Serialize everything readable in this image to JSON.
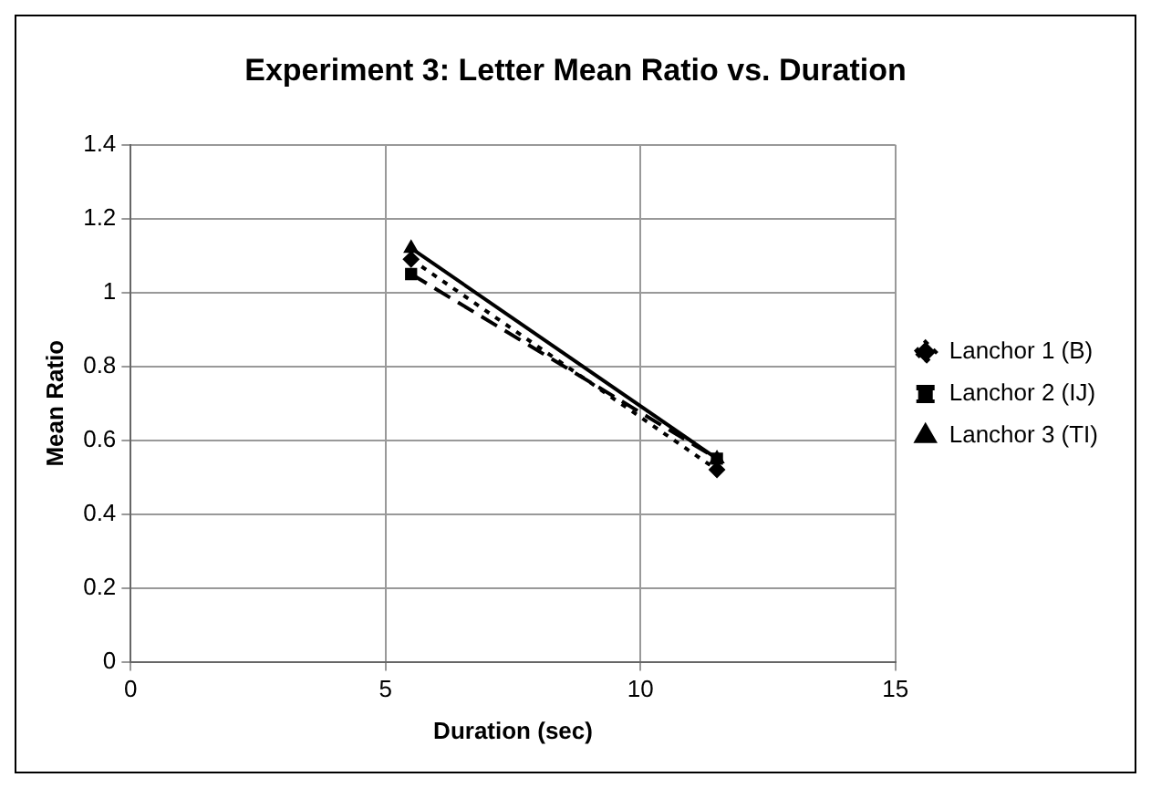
{
  "chart_data": {
    "type": "line",
    "title": "Experiment 3: Letter Mean Ratio vs. Duration",
    "xlabel": "Duration (sec)",
    "ylabel": "Mean Ratio",
    "xlim": [
      0,
      15
    ],
    "xticks": [
      0,
      5,
      10,
      15
    ],
    "ylim": [
      0,
      1.4
    ],
    "yticks": [
      0,
      0.2,
      0.4,
      0.6,
      0.8,
      1,
      1.2,
      1.4
    ],
    "grid": true,
    "legend": "right",
    "x": [
      5.5,
      11.5
    ],
    "series": [
      {
        "name": "Lanchor 1 (B)",
        "color": "#000000",
        "values": [
          1.09,
          0.52
        ],
        "marker": "diamond",
        "line_style": "dotted"
      },
      {
        "name": "Lanchor 2 (IJ)",
        "color": "#000000",
        "values": [
          1.05,
          0.55
        ],
        "marker": "square",
        "line_style": "dashed"
      },
      {
        "name": "Lanchor 3 (TI)",
        "color": "#000000",
        "values": [
          1.12,
          0.55
        ],
        "marker": "triangle",
        "line_style": "solid"
      }
    ]
  }
}
